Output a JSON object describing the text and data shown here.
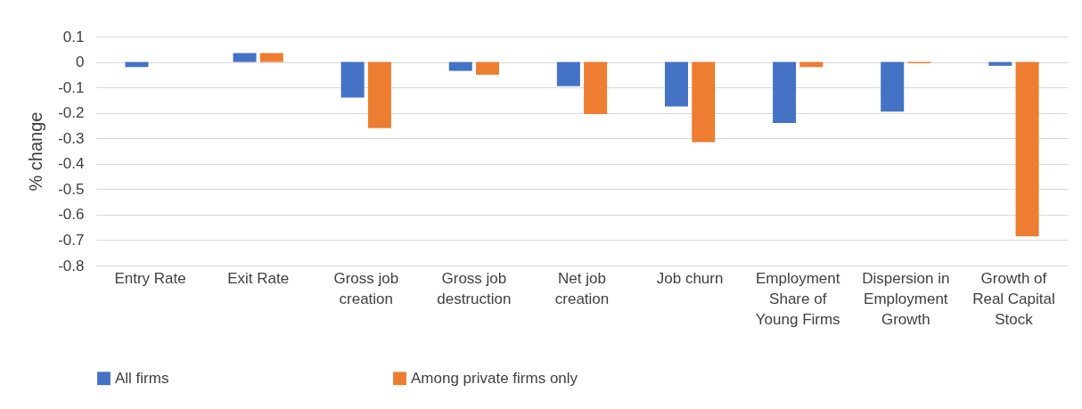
{
  "chart_data": {
    "type": "bar",
    "ylabel": "% change",
    "categories": [
      "Entry Rate",
      "Exit Rate",
      "Gross job creation",
      "Gross job destruction",
      "Net job creation",
      "Job churn",
      "Employment Share of Young Firms",
      "Dispersion in Employment Growth",
      "Growth of Real Capital Stock"
    ],
    "series": [
      {
        "name": "All firms",
        "color": "#4472c4",
        "values": [
          -0.02,
          0.035,
          -0.14,
          -0.035,
          -0.095,
          -0.175,
          -0.24,
          -0.195,
          -0.015
        ]
      },
      {
        "name": "Among private firms only",
        "color": "#ed7d31",
        "values": [
          null,
          0.035,
          -0.26,
          -0.05,
          -0.205,
          -0.315,
          -0.02,
          -0.005,
          -0.685
        ]
      }
    ],
    "ylim": [
      -0.8,
      0.1
    ],
    "yticks": [
      -0.8,
      -0.7,
      -0.6,
      -0.5,
      -0.4,
      -0.3,
      -0.2,
      -0.1,
      0,
      0.1
    ],
    "grid": "y",
    "legend": "bottom"
  }
}
